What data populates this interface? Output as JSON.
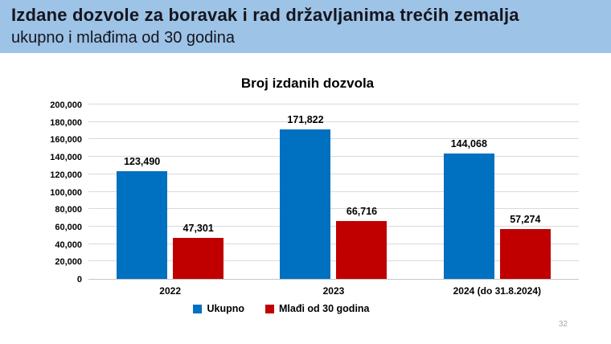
{
  "header": {
    "title_line1": "Izdane dozvole za boravak i rad državljanima trećih zemalja",
    "title_line2": "ukupno i  mlađima od 30 godina",
    "background_color": "#9DC3E6"
  },
  "page_number": "32",
  "chart_data": {
    "type": "bar",
    "title": "Broj izdanih dozvola",
    "categories": [
      "2022",
      "2023",
      "2024 (do 31.8.2024)"
    ],
    "series": [
      {
        "name": "Ukupno",
        "color": "#0070C0",
        "values": [
          123490,
          171822,
          144068
        ]
      },
      {
        "name": "Mlađi od 30 godina",
        "color": "#C00000",
        "values": [
          47301,
          66716,
          57274
        ]
      }
    ],
    "value_labels": [
      "123,490",
      "171,822",
      "144,068",
      "47,301",
      "66,716",
      "57,274"
    ],
    "ylim": [
      0,
      200000
    ],
    "ytick_step": 20000,
    "ytick_labels": [
      "0",
      "20,000",
      "40,000",
      "60,000",
      "80,000",
      "100,000",
      "120,000",
      "140,000",
      "160,000",
      "180,000",
      "200,000"
    ],
    "grid": true,
    "gridline_color": "#d9d9d9",
    "legend_position": "bottom",
    "xlabel": "",
    "ylabel": ""
  }
}
